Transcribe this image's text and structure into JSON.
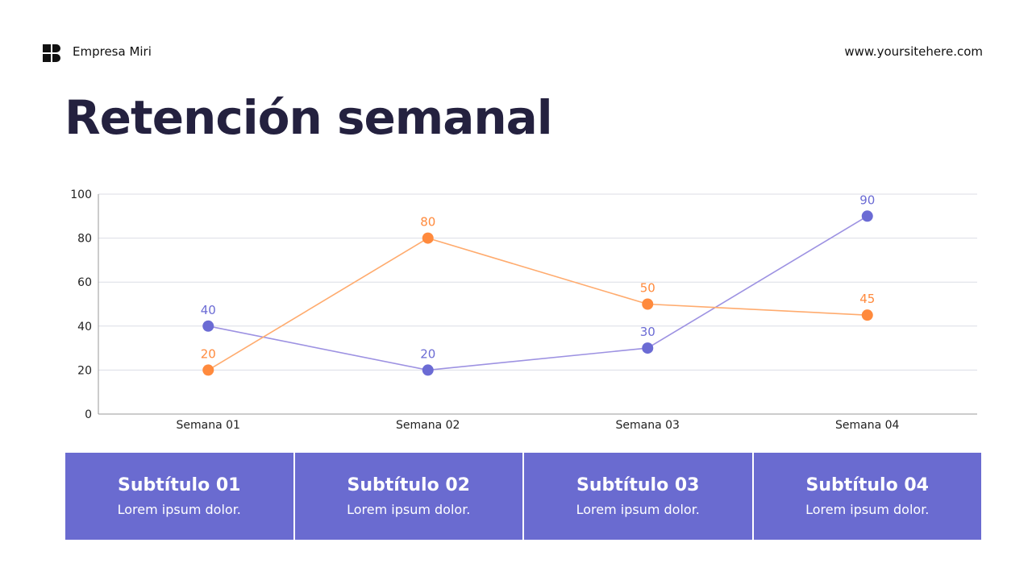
{
  "header": {
    "brand": "Empresa Miri",
    "site": "www.yoursitehere.com",
    "logo_icon": "brand-logo-icon"
  },
  "title": "Retención semanal",
  "chart_data": {
    "type": "line",
    "categories": [
      "Semana 01",
      "Semana 02",
      "Semana 03",
      "Semana 04"
    ],
    "series": [
      {
        "values": [
          40,
          20,
          30,
          90
        ],
        "color": "#6b6bd4",
        "line_color": "#9d92e2"
      },
      {
        "values": [
          20,
          80,
          50,
          45
        ],
        "color": "#ff8a3d",
        "line_color": "#ffab6e"
      }
    ],
    "ylim": [
      0,
      100
    ],
    "yticks": [
      "0",
      "20",
      "40",
      "60",
      "80",
      "100"
    ],
    "grid": true,
    "data_labels": true
  },
  "cards": [
    {
      "title": "Subtítulo 01",
      "text": "Lorem ipsum dolor."
    },
    {
      "title": "Subtítulo 02",
      "text": "Lorem ipsum dolor."
    },
    {
      "title": "Subtítulo 03",
      "text": "Lorem ipsum dolor."
    },
    {
      "title": "Subtítulo 04",
      "text": "Lorem ipsum dolor."
    }
  ]
}
